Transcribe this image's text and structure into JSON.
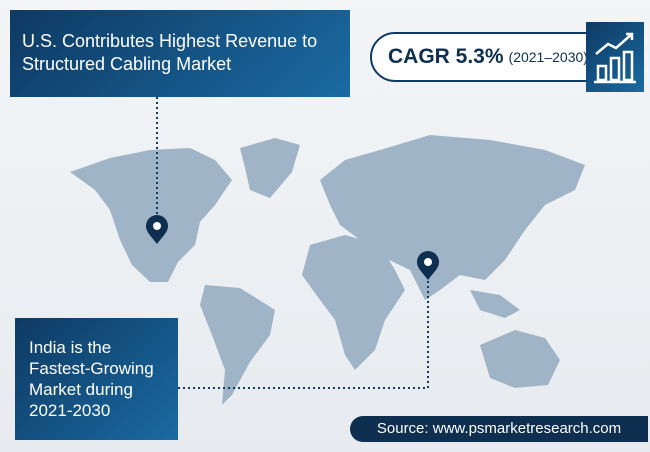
{
  "callouts": {
    "us": {
      "lines": [
        "U.S. Contributes Highest Revenue to",
        "Structured Cabling Market"
      ]
    },
    "india": {
      "lines": [
        "India is the",
        "Fastest-Growing",
        "Market during",
        "2021-2030"
      ]
    }
  },
  "cagr": {
    "label": "CAGR 5.3%",
    "period": "(2021–2030)"
  },
  "source": "Source: www.psmarketresearch.com"
}
